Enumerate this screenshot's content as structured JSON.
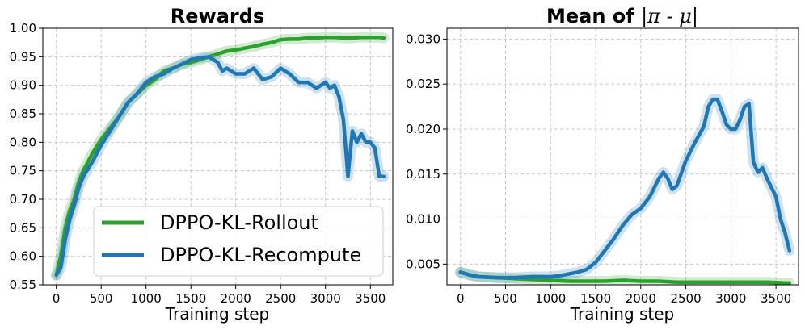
{
  "colors": {
    "rollout": "#2ca02c",
    "recompute": "#1f77b4"
  },
  "chart_data": [
    {
      "type": "line",
      "title": "Rewards",
      "xlabel": "Training step",
      "ylabel": "",
      "xlim": [
        -150,
        3750
      ],
      "ylim": [
        0.55,
        1.0
      ],
      "xticks": [
        0,
        500,
        1000,
        1500,
        2000,
        2500,
        3000,
        3500
      ],
      "yticks": [
        0.55,
        0.6,
        0.65,
        0.7,
        0.75,
        0.8,
        0.85,
        0.9,
        0.95,
        1.0
      ],
      "ytick_labels": [
        "0.55",
        "0.60",
        "0.65",
        "0.70",
        "0.75",
        "0.80",
        "0.85",
        "0.90",
        "0.95",
        "1.00"
      ],
      "grid": true,
      "legend": {
        "placement": "lower-right"
      },
      "series": [
        {
          "name": "DPPO-KL-Rollout",
          "color": "#2ca02c",
          "x": [
            0,
            50,
            100,
            150,
            200,
            250,
            300,
            400,
            500,
            600,
            700,
            800,
            900,
            1000,
            1100,
            1200,
            1300,
            1400,
            1500,
            1600,
            1700,
            1800,
            1900,
            2000,
            2100,
            2200,
            2300,
            2400,
            2500,
            2600,
            2700,
            2800,
            2900,
            3000,
            3100,
            3200,
            3300,
            3400,
            3500,
            3600,
            3650
          ],
          "y": [
            0.567,
            0.6,
            0.65,
            0.68,
            0.7,
            0.73,
            0.75,
            0.78,
            0.805,
            0.825,
            0.845,
            0.87,
            0.885,
            0.9,
            0.91,
            0.925,
            0.93,
            0.937,
            0.94,
            0.945,
            0.95,
            0.955,
            0.96,
            0.962,
            0.965,
            0.968,
            0.972,
            0.975,
            0.98,
            0.981,
            0.981,
            0.983,
            0.983,
            0.984,
            0.984,
            0.983,
            0.983,
            0.984,
            0.984,
            0.984,
            0.983
          ]
        },
        {
          "name": "DPPO-KL-Recompute",
          "color": "#1f77b4",
          "x": [
            0,
            50,
            100,
            150,
            200,
            250,
            300,
            400,
            500,
            600,
            700,
            800,
            900,
            1000,
            1100,
            1200,
            1300,
            1400,
            1500,
            1600,
            1700,
            1800,
            1850,
            1900,
            2000,
            2100,
            2200,
            2300,
            2400,
            2500,
            2600,
            2700,
            2800,
            2900,
            2950,
            3000,
            3050,
            3100,
            3150,
            3200,
            3250,
            3300,
            3350,
            3400,
            3450,
            3500,
            3550,
            3600,
            3650
          ],
          "y": [
            0.567,
            0.58,
            0.63,
            0.665,
            0.69,
            0.72,
            0.74,
            0.765,
            0.795,
            0.82,
            0.845,
            0.87,
            0.885,
            0.905,
            0.915,
            0.92,
            0.93,
            0.937,
            0.945,
            0.948,
            0.95,
            0.94,
            0.925,
            0.93,
            0.92,
            0.92,
            0.93,
            0.91,
            0.915,
            0.93,
            0.92,
            0.905,
            0.905,
            0.895,
            0.9,
            0.905,
            0.895,
            0.9,
            0.88,
            0.84,
            0.74,
            0.82,
            0.8,
            0.815,
            0.8,
            0.8,
            0.79,
            0.74,
            0.74
          ]
        }
      ]
    },
    {
      "type": "line",
      "title_prefix": "Mean of ",
      "title_math": "|π - μ|",
      "xlabel": "Training step",
      "ylabel": "",
      "xlim": [
        -150,
        3750
      ],
      "ylim": [
        0.0027,
        0.0312
      ],
      "xticks": [
        0,
        500,
        1000,
        1500,
        2000,
        2500,
        3000,
        3500
      ],
      "yticks": [
        0.005,
        0.01,
        0.015,
        0.02,
        0.025,
        0.03
      ],
      "ytick_labels": [
        "0.005",
        "0.010",
        "0.015",
        "0.020",
        "0.025",
        "0.030"
      ],
      "grid": true,
      "series": [
        {
          "name": "DPPO-KL-Rollout",
          "color": "#2ca02c",
          "x": [
            0,
            100,
            200,
            400,
            600,
            800,
            1000,
            1200,
            1400,
            1600,
            1800,
            2000,
            2200,
            2400,
            2600,
            2800,
            3000,
            3200,
            3400,
            3600,
            3650
          ],
          "y": [
            0.0041,
            0.0038,
            0.0036,
            0.0035,
            0.0034,
            0.0033,
            0.0032,
            0.0031,
            0.0031,
            0.0031,
            0.0032,
            0.0031,
            0.0031,
            0.003,
            0.003,
            0.003,
            0.003,
            0.003,
            0.003,
            0.0029,
            0.0029
          ]
        },
        {
          "name": "DPPO-KL-Recompute",
          "color": "#1f77b4",
          "x": [
            0,
            100,
            200,
            400,
            600,
            800,
            1000,
            1100,
            1200,
            1300,
            1400,
            1500,
            1600,
            1700,
            1800,
            1900,
            2000,
            2100,
            2200,
            2250,
            2300,
            2350,
            2400,
            2500,
            2600,
            2700,
            2750,
            2800,
            2850,
            2900,
            2950,
            3000,
            3050,
            3100,
            3150,
            3200,
            3250,
            3300,
            3350,
            3400,
            3500,
            3550,
            3600,
            3650
          ],
          "y": [
            0.0041,
            0.0038,
            0.0036,
            0.0035,
            0.0035,
            0.0036,
            0.0036,
            0.0037,
            0.0039,
            0.0041,
            0.0044,
            0.0052,
            0.0065,
            0.0078,
            0.0093,
            0.0105,
            0.0112,
            0.0125,
            0.0145,
            0.0152,
            0.0145,
            0.0133,
            0.0137,
            0.0165,
            0.0185,
            0.0203,
            0.0225,
            0.0233,
            0.0233,
            0.022,
            0.0205,
            0.02,
            0.02,
            0.021,
            0.0225,
            0.0228,
            0.0163,
            0.0152,
            0.0157,
            0.0145,
            0.0125,
            0.01,
            0.0085,
            0.0065
          ]
        }
      ]
    }
  ]
}
